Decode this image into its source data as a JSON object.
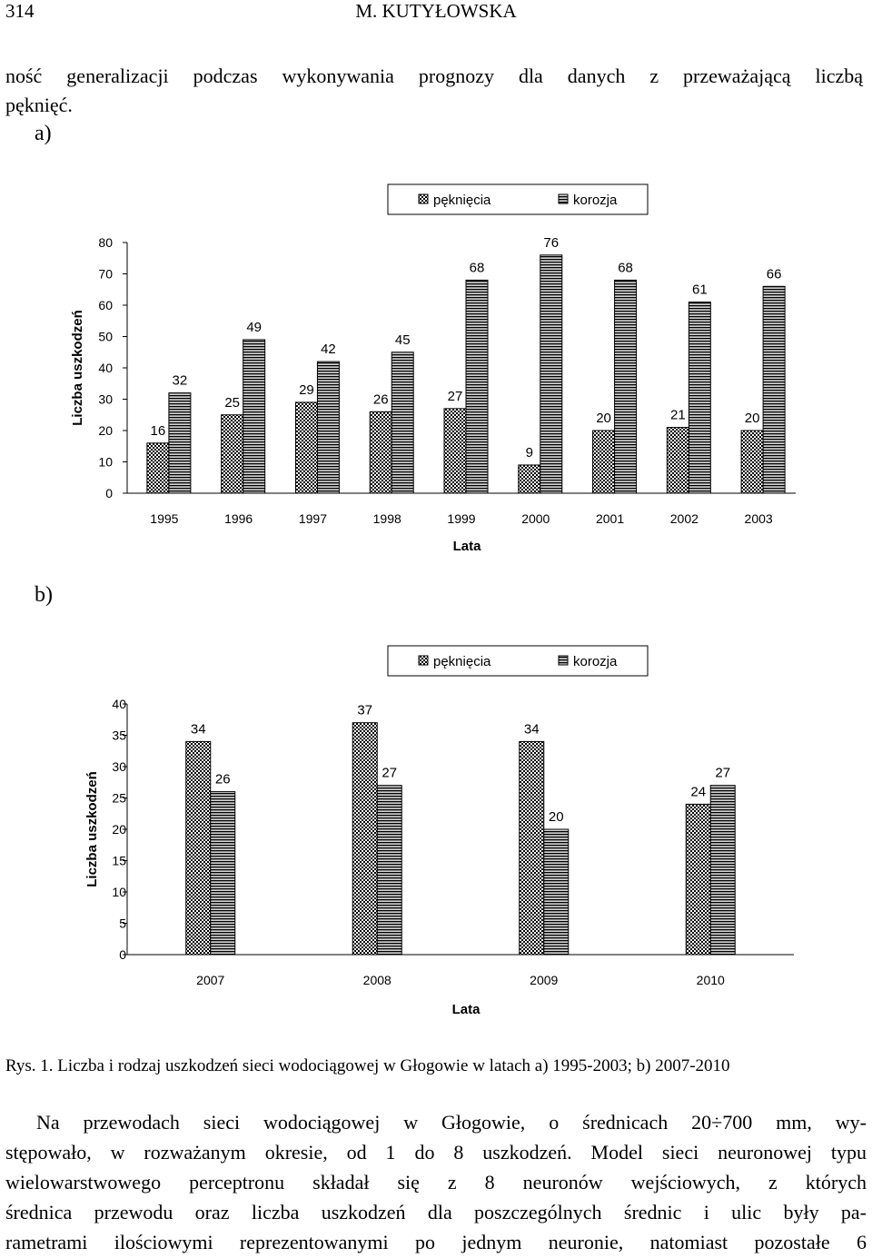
{
  "page": {
    "number": "314",
    "running_title": "M. KUTYŁOWSKA",
    "intro_lines": [
      "ność generalizacji podczas wykonywania prognozy dla danych z przeważającą liczbą",
      "pęknięć."
    ],
    "panel_a_label": "a)",
    "panel_b_label": "b)",
    "caption": "Rys. 1. Liczba i rodzaj uszkodzeń sieci wodociągowej w Głogowie w latach a) 1995-2003; b) 2007-2010",
    "body_lines": [
      "Na przewodach sieci wodociągowej w Głogowie, o średnicach 20÷700 mm, wy-",
      "stępowało, w rozważanym okresie, od 1 do 8 uszkodzeń. Model sieci neuronowej typu",
      "wielowarstwowego perceptronu składał się z 8 neuronów wejściowych, z których",
      "średnica przewodu oraz liczba uszkodzeń dla poszczególnych średnic i ulic były pa-",
      "rametrami ilościowymi reprezentowanymi po jednym neuronie, natomiast pozostałe 6"
    ]
  },
  "chart_data": [
    {
      "type": "bar",
      "title": "",
      "categories": [
        "1995",
        "1996",
        "1997",
        "1998",
        "1999",
        "2000",
        "2001",
        "2002",
        "2003"
      ],
      "series": [
        {
          "name": "pęknięcia",
          "values": [
            16,
            25,
            29,
            26,
            27,
            9,
            20,
            21,
            20
          ]
        },
        {
          "name": "korozja",
          "values": [
            32,
            49,
            42,
            45,
            68,
            76,
            68,
            61,
            66
          ]
        }
      ],
      "xlabel": "Lata",
      "ylabel": "Liczba uszkodzeń",
      "ylim": [
        0,
        80
      ],
      "yticks": [
        0,
        10,
        20,
        30,
        40,
        50,
        60,
        70,
        80
      ],
      "grid": false,
      "legend_position": "top-right"
    },
    {
      "type": "bar",
      "title": "",
      "categories": [
        "2007",
        "2008",
        "2009",
        "2010"
      ],
      "series": [
        {
          "name": "pęknięcia",
          "values": [
            34,
            37,
            34,
            24
          ]
        },
        {
          "name": "korozja",
          "values": [
            26,
            27,
            20,
            27
          ]
        }
      ],
      "xlabel": "Lata",
      "ylabel": "Liczba uszkodzeń",
      "ylim": [
        0,
        40
      ],
      "yticks": [
        0,
        5,
        10,
        15,
        20,
        25,
        30,
        35,
        40
      ],
      "grid": false,
      "legend_position": "top-right"
    }
  ]
}
